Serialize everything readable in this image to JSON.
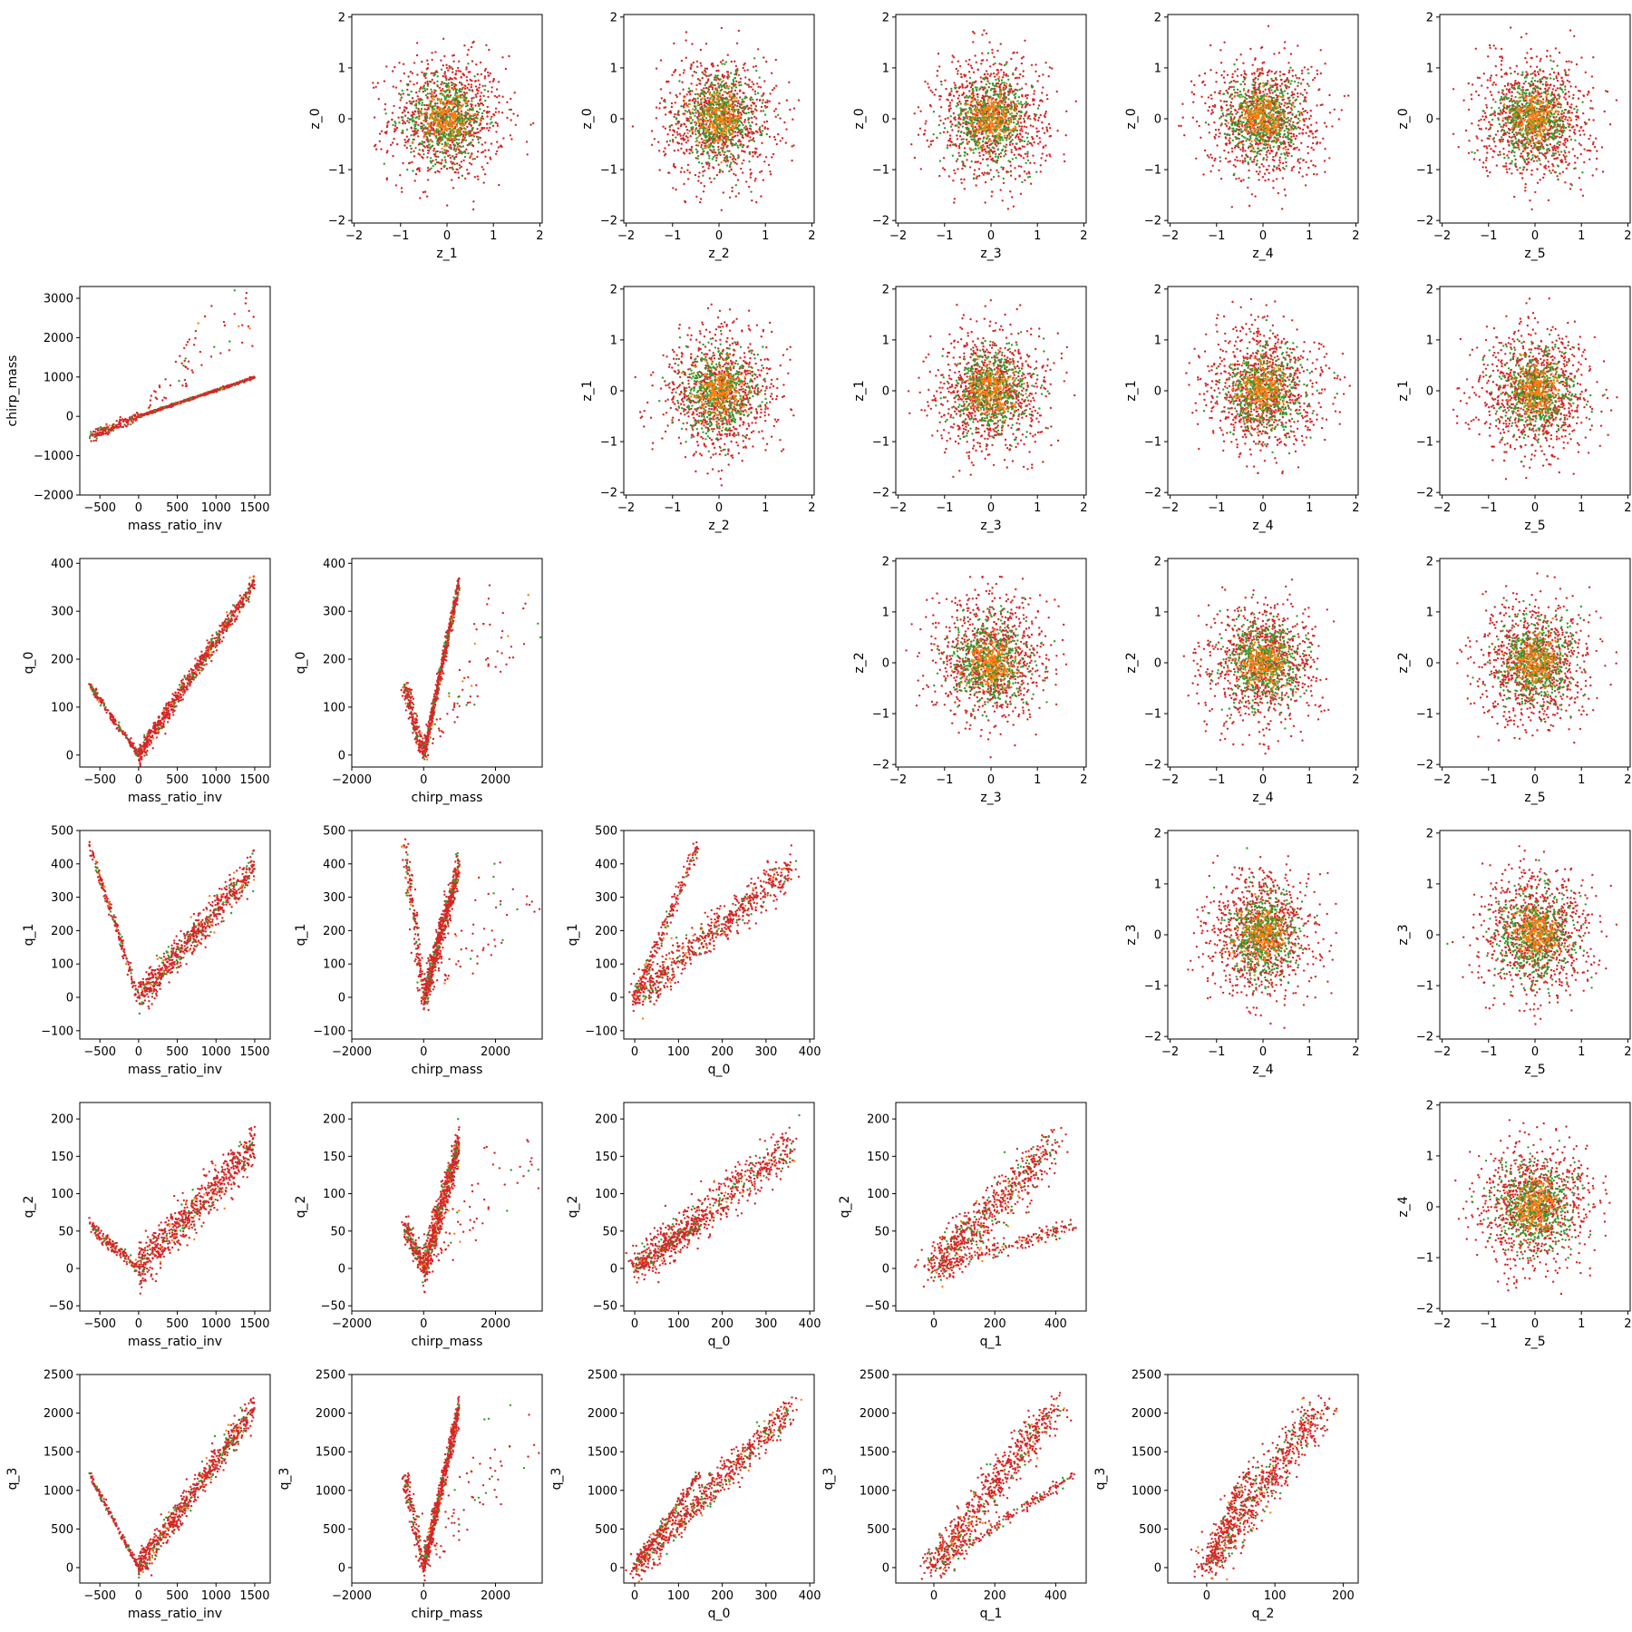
{
  "chart_data": {
    "type": "scatter",
    "layout": "pair-grid",
    "lower_variables": [
      "mass_ratio_inv",
      "chirp_mass",
      "q_0",
      "q_1",
      "q_2",
      "q_3"
    ],
    "upper_variables": [
      "z_0",
      "z_1",
      "z_2",
      "z_3",
      "z_4",
      "z_5"
    ],
    "colors": [
      "#d62728",
      "#2ca02c",
      "#ff7f0e"
    ],
    "ranges": {
      "mass_ratio_inv": [
        -760,
        1700
      ],
      "chirp_mass": [
        -2000,
        3300
      ],
      "q_0": [
        -25,
        410
      ],
      "q_1": [
        -125,
        500
      ],
      "q_2": [
        -57,
        222
      ],
      "q_3": [
        -200,
        2500
      ],
      "z": [
        -2.05,
        2.05
      ]
    },
    "ticks": {
      "mass_ratio_inv": [
        -500,
        0,
        500,
        1000,
        1500
      ],
      "chirp_mass": [
        -2000,
        0,
        2000
      ],
      "chirp_mass_y": [
        -2000,
        -1000,
        0,
        1000,
        2000,
        3000
      ],
      "q_0": [
        0,
        100,
        200,
        300,
        400
      ],
      "q_1": [
        -100,
        0,
        100,
        200,
        300,
        400,
        500
      ],
      "q_1_x": [
        0,
        200,
        400
      ],
      "q_2": [
        -50,
        0,
        50,
        100,
        150,
        200
      ],
      "q_2_x": [
        0,
        100,
        200
      ],
      "q_3": [
        0,
        500,
        1000,
        1500,
        2000,
        2500
      ],
      "z": [
        -2,
        -1,
        0,
        1,
        2
      ]
    },
    "panels": [
      {
        "row": 0,
        "col": 1,
        "x": "z_1",
        "y": "z_0"
      },
      {
        "row": 0,
        "col": 2,
        "x": "z_2",
        "y": "z_0"
      },
      {
        "row": 0,
        "col": 3,
        "x": "z_3",
        "y": "z_0"
      },
      {
        "row": 0,
        "col": 4,
        "x": "z_4",
        "y": "z_0"
      },
      {
        "row": 0,
        "col": 5,
        "x": "z_5",
        "y": "z_0"
      },
      {
        "row": 1,
        "col": 0,
        "x": "mass_ratio_inv",
        "y": "chirp_mass"
      },
      {
        "row": 1,
        "col": 2,
        "x": "z_2",
        "y": "z_1"
      },
      {
        "row": 1,
        "col": 3,
        "x": "z_3",
        "y": "z_1"
      },
      {
        "row": 1,
        "col": 4,
        "x": "z_4",
        "y": "z_1"
      },
      {
        "row": 1,
        "col": 5,
        "x": "z_5",
        "y": "z_1"
      },
      {
        "row": 2,
        "col": 0,
        "x": "mass_ratio_inv",
        "y": "q_0"
      },
      {
        "row": 2,
        "col": 1,
        "x": "chirp_mass",
        "y": "q_0"
      },
      {
        "row": 2,
        "col": 3,
        "x": "z_3",
        "y": "z_2"
      },
      {
        "row": 2,
        "col": 4,
        "x": "z_4",
        "y": "z_2"
      },
      {
        "row": 2,
        "col": 5,
        "x": "z_5",
        "y": "z_2"
      },
      {
        "row": 3,
        "col": 0,
        "x": "mass_ratio_inv",
        "y": "q_1"
      },
      {
        "row": 3,
        "col": 1,
        "x": "chirp_mass",
        "y": "q_1"
      },
      {
        "row": 3,
        "col": 2,
        "x": "q_0",
        "y": "q_1"
      },
      {
        "row": 3,
        "col": 4,
        "x": "z_4",
        "y": "z_3"
      },
      {
        "row": 3,
        "col": 5,
        "x": "z_5",
        "y": "z_3"
      },
      {
        "row": 4,
        "col": 0,
        "x": "mass_ratio_inv",
        "y": "q_2"
      },
      {
        "row": 4,
        "col": 1,
        "x": "chirp_mass",
        "y": "q_2"
      },
      {
        "row": 4,
        "col": 2,
        "x": "q_0",
        "y": "q_2"
      },
      {
        "row": 4,
        "col": 3,
        "x": "q_1",
        "y": "q_2"
      },
      {
        "row": 4,
        "col": 5,
        "x": "z_5",
        "y": "z_4"
      },
      {
        "row": 5,
        "col": 0,
        "x": "mass_ratio_inv",
        "y": "q_3"
      },
      {
        "row": 5,
        "col": 1,
        "x": "chirp_mass",
        "y": "q_3"
      },
      {
        "row": 5,
        "col": 2,
        "x": "q_0",
        "y": "q_3"
      },
      {
        "row": 5,
        "col": 3,
        "x": "q_1",
        "y": "q_3"
      },
      {
        "row": 5,
        "col": 4,
        "x": "q_2",
        "y": "q_3"
      }
    ],
    "grid": false,
    "legend": "none"
  }
}
